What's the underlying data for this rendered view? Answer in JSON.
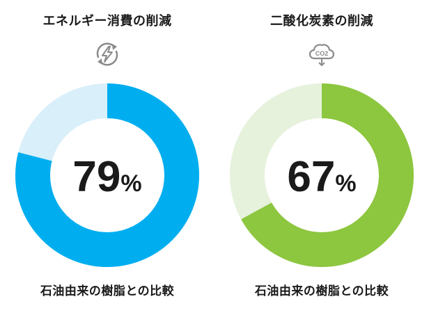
{
  "chart_data": [
    {
      "type": "pie",
      "title": "エネルギー消費の削減",
      "value": 79,
      "value_label": "79",
      "unit": "%",
      "caption": "石油由来の樹脂との比較",
      "icon": "energy-cycle-icon",
      "colors": {
        "filled": "#00aeef",
        "remainder": "#d9effa"
      }
    },
    {
      "type": "pie",
      "title": "二酸化炭素の削減",
      "value": 67,
      "value_label": "67",
      "unit": "%",
      "caption": "石油由来の樹脂との比較",
      "icon": "co2-cloud-icon",
      "icon_text": "CO2",
      "colors": {
        "filled": "#8dc63f",
        "remainder": "#e6f2dc"
      }
    }
  ]
}
